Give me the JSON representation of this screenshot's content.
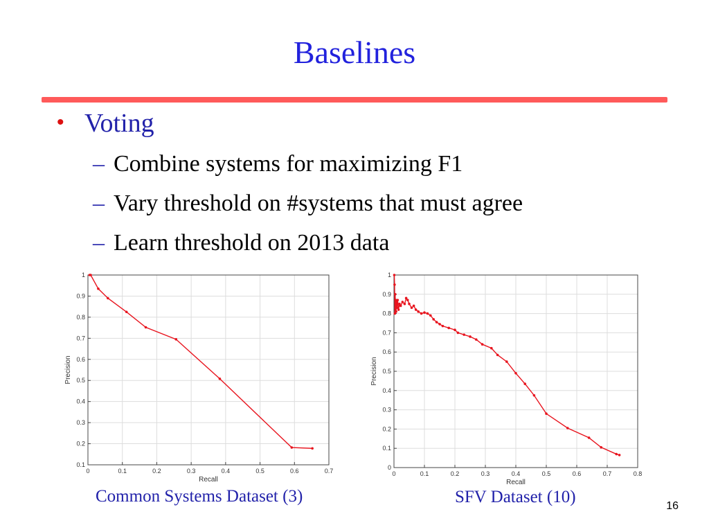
{
  "slide": {
    "title": "Baselines",
    "page_number": "16",
    "bullets": [
      {
        "text": "Voting",
        "subitems": [
          "Combine systems for maximizing F1",
          "Vary threshold on #systems that must agree",
          "Learn threshold on 2013 data"
        ]
      }
    ]
  },
  "captions": {
    "left": "Common Systems Dataset (3)",
    "right": "SFV Dataset (10)"
  },
  "colors": {
    "title": "#2222dd",
    "rule": "#ff5a5a",
    "bullet": "#dd1111",
    "line": "#e8141e"
  },
  "chart_data": [
    {
      "type": "line",
      "xlabel": "Recall",
      "ylabel": "Precision",
      "xlim": [
        0,
        0.7
      ],
      "ylim": [
        0.1,
        1
      ],
      "xticks": [
        0,
        0.1,
        0.2,
        0.3,
        0.4,
        0.5,
        0.6,
        0.7
      ],
      "yticks": [
        0.1,
        0.2,
        0.3,
        0.4,
        0.5,
        0.6,
        0.7,
        0.8,
        0.9,
        1
      ],
      "grid": true,
      "series": [
        {
          "x": [
            0.005,
            0.008,
            0.03,
            0.058,
            0.112,
            0.168,
            0.256,
            0.383,
            0.592,
            0.652
          ],
          "y": [
            1.0,
            1.0,
            0.935,
            0.89,
            0.825,
            0.752,
            0.695,
            0.508,
            0.182,
            0.178
          ]
        }
      ]
    },
    {
      "type": "line",
      "xlabel": "Recall",
      "ylabel": "Precision",
      "xlim": [
        0,
        0.8
      ],
      "ylim": [
        0,
        1
      ],
      "xticks": [
        0,
        0.1,
        0.2,
        0.3,
        0.4,
        0.5,
        0.6,
        0.7,
        0.8
      ],
      "yticks": [
        0,
        0.1,
        0.2,
        0.3,
        0.4,
        0.5,
        0.6,
        0.7,
        0.8,
        0.9,
        1
      ],
      "grid": true,
      "series": [
        {
          "x": [
            0.001,
            0.002,
            0.003,
            0.004,
            0.005,
            0.006,
            0.007,
            0.008,
            0.01,
            0.012,
            0.015,
            0.018,
            0.022,
            0.028,
            0.035,
            0.04,
            0.045,
            0.05,
            0.058,
            0.065,
            0.072,
            0.08,
            0.09,
            0.1,
            0.11,
            0.12,
            0.13,
            0.14,
            0.15,
            0.16,
            0.18,
            0.2,
            0.21,
            0.23,
            0.25,
            0.27,
            0.29,
            0.32,
            0.34,
            0.37,
            0.4,
            0.43,
            0.46,
            0.5,
            0.57,
            0.64,
            0.68,
            0.73,
            0.74
          ],
          "y": [
            1.0,
            0.95,
            0.8,
            0.9,
            0.82,
            0.87,
            0.81,
            0.86,
            0.83,
            0.87,
            0.82,
            0.85,
            0.84,
            0.86,
            0.85,
            0.88,
            0.87,
            0.85,
            0.83,
            0.84,
            0.82,
            0.81,
            0.8,
            0.805,
            0.8,
            0.79,
            0.77,
            0.755,
            0.745,
            0.735,
            0.725,
            0.715,
            0.7,
            0.69,
            0.68,
            0.665,
            0.64,
            0.62,
            0.585,
            0.55,
            0.49,
            0.435,
            0.375,
            0.28,
            0.205,
            0.155,
            0.105,
            0.07,
            0.065
          ]
        }
      ]
    }
  ]
}
